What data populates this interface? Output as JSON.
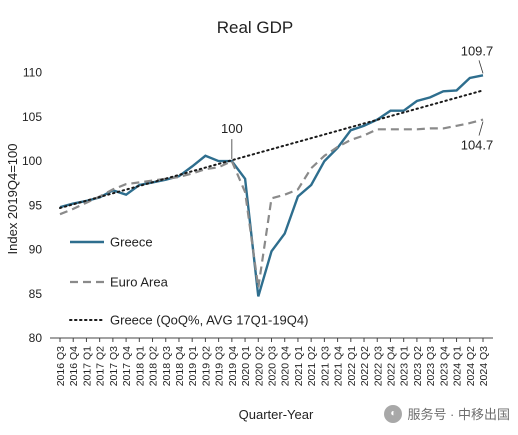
{
  "chart_data": {
    "type": "line",
    "title": "Real GDP",
    "ylabel": "Index 2019Q4=100",
    "xlabel": "Quarter-Year",
    "ylim": [
      80,
      112
    ],
    "yticks": [
      80,
      85,
      90,
      95,
      100,
      105,
      110
    ],
    "grid": false,
    "legend_position": "bottom-left",
    "categories": [
      "2016 Q3",
      "2016 Q4",
      "2017 Q1",
      "2017 Q2",
      "2017 Q3",
      "2017 Q4",
      "2018 Q1",
      "2018 Q2",
      "2018 Q3",
      "2018 Q4",
      "2019 Q1",
      "2019 Q2",
      "2019 Q3",
      "2019 Q4",
      "2020 Q1",
      "2020 Q2",
      "2020 Q3",
      "2020 Q4",
      "2021 Q1",
      "2021 Q2",
      "2021 Q3",
      "2021 Q4",
      "2022 Q1",
      "2022 Q2",
      "2022 Q3",
      "2022 Q4",
      "2023 Q1",
      "2023 Q2",
      "2023 Q3",
      "2023 Q4",
      "2024 Q1",
      "2024 Q2",
      "2024 Q3"
    ],
    "series": [
      {
        "name": "Greece",
        "style": "solid",
        "color": "#2e6e8e",
        "values": [
          94.8,
          95.2,
          95.5,
          95.9,
          96.7,
          96.2,
          97.3,
          97.6,
          97.9,
          98.3,
          99.4,
          100.6,
          100.0,
          100.0,
          98.0,
          84.7,
          89.8,
          91.8,
          96.0,
          97.3,
          100.0,
          101.5,
          103.5,
          104.0,
          104.7,
          105.7,
          105.7,
          106.8,
          107.2,
          107.9,
          108.0,
          109.4,
          109.7
        ]
      },
      {
        "name": "Euro Area",
        "style": "dashed",
        "color": "#8a8a8a",
        "values": [
          94.0,
          94.6,
          95.3,
          96.0,
          96.8,
          97.4,
          97.6,
          97.8,
          98.0,
          98.2,
          98.6,
          99.1,
          99.3,
          100.0,
          96.5,
          85.7,
          95.8,
          96.2,
          96.8,
          99.2,
          100.6,
          101.6,
          102.4,
          102.9,
          103.6,
          103.6,
          103.6,
          103.6,
          103.7,
          103.7,
          104.0,
          104.3,
          104.7
        ]
      },
      {
        "name": "Greece (QoQ%, AVG 17Q1-19Q4)",
        "style": "dotted",
        "color": "#1a1a1a",
        "start": 94.7,
        "end": 108.0
      }
    ],
    "annotations": [
      {
        "text": "100",
        "category": "2019 Q4",
        "value": 100
      },
      {
        "text": "109.7",
        "category": "2024 Q3",
        "value": 109.7
      },
      {
        "text": "104.7",
        "category": "2024 Q3",
        "value": 104.7
      }
    ]
  },
  "watermark": {
    "text": "服务号 · 中移出国",
    "icon": "wechat-icon"
  }
}
